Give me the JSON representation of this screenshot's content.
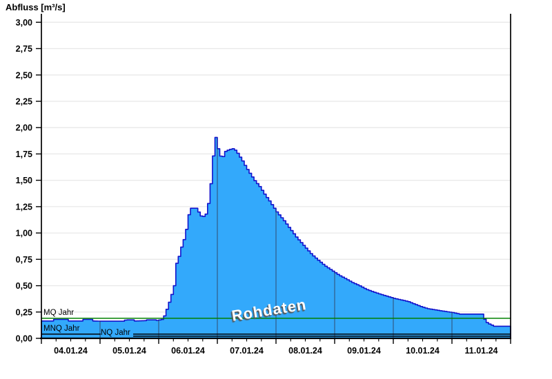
{
  "page": {
    "background": "#FFFFFF"
  },
  "chart_data": {
    "type": "area",
    "title": "Abfluss [m³/s]",
    "ylabel": "Abfluss [m³/s]",
    "xlabel": "",
    "watermark": "Rohdaten",
    "ylim": [
      0.0,
      3.0
    ],
    "y_tick_step": 0.25,
    "y_tick_labels": [
      "0,00",
      "0,25",
      "0,50",
      "0,75",
      "1,00",
      "1,25",
      "1,50",
      "1,75",
      "2,00",
      "2,25",
      "2,50",
      "2,75",
      "3,00"
    ],
    "x_tick_labels": [
      "04.01.24",
      "05.01.24",
      "06.01.24",
      "07.01.24",
      "08.01.24",
      "09.01.24",
      "10.01.24",
      "11.01.24"
    ],
    "x_days_shown": 8,
    "x_minor_ticks_per_day": 4,
    "grid": "light horizontal gridlines; dark vertical day-separator lines visible inside filled area only",
    "legend_position": "none",
    "reference_lines": [
      {
        "label": "MQ Jahr",
        "value": 0.19,
        "color": "#008000",
        "from_day": 0
      },
      {
        "label": "MNQ Jahr",
        "value": 0.04,
        "color": "#000000",
        "from_day": 0
      },
      {
        "label": "NQ Jahr",
        "value": 0.02,
        "color": "#000000",
        "from_day": 1.01
      }
    ],
    "series": [
      {
        "name": "Abfluss Rohdaten",
        "unit": "m³/s",
        "x_unit": "days since 04.01.24 00:00",
        "points": [
          [
            0.0,
            0.165
          ],
          [
            0.17,
            0.165
          ],
          [
            0.18,
            0.18
          ],
          [
            0.42,
            0.18
          ],
          [
            0.43,
            0.165
          ],
          [
            0.67,
            0.165
          ],
          [
            0.68,
            0.18
          ],
          [
            0.85,
            0.18
          ],
          [
            0.86,
            0.165
          ],
          [
            1.0,
            0.163
          ],
          [
            1.4,
            0.163
          ],
          [
            1.42,
            0.175
          ],
          [
            1.56,
            0.175
          ],
          [
            1.58,
            0.165
          ],
          [
            1.76,
            0.168
          ],
          [
            1.79,
            0.175
          ],
          [
            1.92,
            0.175
          ],
          [
            1.96,
            0.17
          ],
          [
            2.05,
            0.18
          ],
          [
            2.09,
            0.22
          ],
          [
            2.14,
            0.3
          ],
          [
            2.19,
            0.38
          ],
          [
            2.22,
            0.44
          ],
          [
            2.25,
            0.5
          ],
          [
            2.27,
            0.6
          ],
          [
            2.29,
            0.71
          ],
          [
            2.33,
            0.77
          ],
          [
            2.36,
            0.84
          ],
          [
            2.4,
            0.91
          ],
          [
            2.44,
            0.975
          ],
          [
            2.46,
            1.04
          ],
          [
            2.48,
            1.12
          ],
          [
            2.51,
            1.2
          ],
          [
            2.53,
            1.235
          ],
          [
            2.65,
            1.235
          ],
          [
            2.68,
            1.17
          ],
          [
            2.73,
            1.155
          ],
          [
            2.78,
            1.16
          ],
          [
            2.81,
            1.21
          ],
          [
            2.85,
            1.33
          ],
          [
            2.87,
            1.43
          ],
          [
            2.89,
            1.58
          ],
          [
            2.92,
            1.75
          ],
          [
            2.94,
            1.86
          ],
          [
            2.95,
            1.925
          ],
          [
            2.98,
            1.86
          ],
          [
            3.0,
            1.8
          ],
          [
            3.04,
            1.73
          ],
          [
            3.08,
            1.72
          ],
          [
            3.11,
            1.77
          ],
          [
            3.18,
            1.79
          ],
          [
            3.25,
            1.8
          ],
          [
            3.31,
            1.78
          ],
          [
            3.35,
            1.74
          ],
          [
            3.41,
            1.69
          ],
          [
            3.48,
            1.62
          ],
          [
            3.55,
            1.56
          ],
          [
            3.62,
            1.5
          ],
          [
            3.71,
            1.44
          ],
          [
            3.79,
            1.37
          ],
          [
            3.88,
            1.3
          ],
          [
            4.0,
            1.2
          ],
          [
            4.12,
            1.12
          ],
          [
            4.24,
            1.03
          ],
          [
            4.35,
            0.95
          ],
          [
            4.47,
            0.875
          ],
          [
            4.59,
            0.8
          ],
          [
            4.71,
            0.74
          ],
          [
            4.82,
            0.69
          ],
          [
            4.94,
            0.645
          ],
          [
            5.06,
            0.6
          ],
          [
            5.18,
            0.565
          ],
          [
            5.29,
            0.53
          ],
          [
            5.41,
            0.5
          ],
          [
            5.53,
            0.465
          ],
          [
            5.65,
            0.44
          ],
          [
            5.76,
            0.42
          ],
          [
            5.88,
            0.4
          ],
          [
            6.0,
            0.38
          ],
          [
            6.12,
            0.365
          ],
          [
            6.24,
            0.35
          ],
          [
            6.35,
            0.325
          ],
          [
            6.47,
            0.3
          ],
          [
            6.59,
            0.28
          ],
          [
            6.71,
            0.27
          ],
          [
            6.82,
            0.26
          ],
          [
            7.0,
            0.245
          ],
          [
            7.12,
            0.23
          ],
          [
            7.5,
            0.23
          ],
          [
            7.53,
            0.19
          ],
          [
            7.59,
            0.145
          ],
          [
            7.71,
            0.115
          ],
          [
            8.0,
            0.115
          ]
        ]
      }
    ],
    "colors": {
      "area_fill": "#33A9FB",
      "area_stroke": "#1212CC",
      "grid": "#E8E8E8",
      "day_line": "#33334D",
      "axis": "#000000",
      "mq_line": "#008000"
    }
  }
}
